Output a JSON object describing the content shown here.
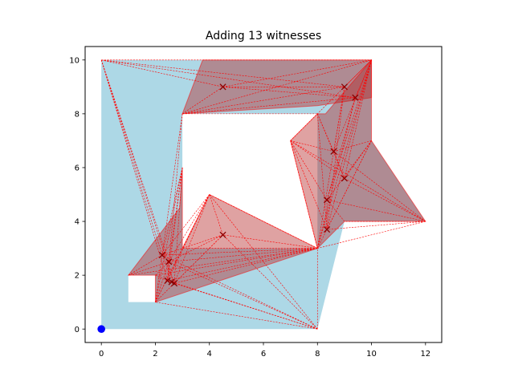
{
  "chart_data": {
    "type": "scatter",
    "title": "Adding 13 witnesses",
    "xlabel": "",
    "ylabel": "",
    "xlim": [
      -0.6,
      12.6
    ],
    "ylim": [
      -0.5,
      10.5
    ],
    "xticks": [
      0,
      2,
      4,
      6,
      8,
      10,
      12
    ],
    "yticks": [
      0,
      2,
      4,
      6,
      8,
      10
    ],
    "grid": false,
    "colors": {
      "region": "#add8e6",
      "visibility_fill": "#b22222",
      "visibility_edge": "#ff0000",
      "witness_marker": "#8b0000",
      "guard": "#0000ff"
    },
    "region_outer": [
      [
        0,
        0
      ],
      [
        8,
        0
      ],
      [
        9,
        4
      ],
      [
        12,
        4
      ],
      [
        10,
        7
      ],
      [
        10,
        10
      ],
      [
        0,
        10
      ]
    ],
    "holes": [
      [
        [
          3,
          3
        ],
        [
          3,
          8
        ],
        [
          8,
          8
        ],
        [
          8,
          3
        ]
      ],
      [
        [
          1,
          1
        ],
        [
          2,
          1
        ],
        [
          2,
          2
        ],
        [
          1,
          2
        ]
      ]
    ],
    "guard": [
      0,
      0
    ],
    "witnesses": [
      {
        "x": 4.5,
        "y": 9.0
      },
      {
        "x": 9.0,
        "y": 9.0
      },
      {
        "x": 9.4,
        "y": 8.6
      },
      {
        "x": 8.6,
        "y": 6.6
      },
      {
        "x": 9.0,
        "y": 5.6
      },
      {
        "x": 8.35,
        "y": 4.8
      },
      {
        "x": 8.35,
        "y": 3.7
      },
      {
        "x": 4.5,
        "y": 3.5
      },
      {
        "x": 2.25,
        "y": 2.75
      },
      {
        "x": 2.5,
        "y": 2.5
      },
      {
        "x": 2.45,
        "y": 1.8
      },
      {
        "x": 2.7,
        "y": 1.7
      },
      {
        "x": 2.6,
        "y": 1.75
      }
    ],
    "visibility_polygons": [
      [
        [
          3,
          8
        ],
        [
          3.75,
          10
        ],
        [
          10,
          10
        ],
        [
          10,
          8.6
        ],
        [
          8,
          8.3
        ]
      ],
      [
        [
          7,
          7
        ],
        [
          8,
          8
        ],
        [
          8.3,
          8
        ],
        [
          10,
          10
        ],
        [
          10,
          7
        ],
        [
          12,
          4
        ],
        [
          9,
          4
        ],
        [
          8.3,
          3.3
        ],
        [
          8,
          3
        ]
      ],
      [
        [
          1,
          2
        ],
        [
          2,
          2
        ],
        [
          2,
          1
        ],
        [
          8,
          3
        ],
        [
          7,
          3.5
        ],
        [
          4,
          5
        ],
        [
          3,
          3
        ],
        [
          3,
          6
        ],
        [
          2.9,
          4.5
        ]
      ]
    ],
    "sight_lines": [
      [
        [
          0,
          10
        ],
        [
          2.25,
          2.75
        ]
      ],
      [
        [
          0,
          10
        ],
        [
          2.5,
          2.5
        ]
      ],
      [
        [
          0,
          10
        ],
        [
          2.45,
          1.8
        ]
      ],
      [
        [
          0,
          10
        ],
        [
          2.7,
          1.7
        ]
      ],
      [
        [
          0,
          10
        ],
        [
          4.5,
          9
        ]
      ],
      [
        [
          0,
          10
        ],
        [
          9,
          9
        ]
      ],
      [
        [
          0,
          10
        ],
        [
          9.4,
          8.6
        ]
      ],
      [
        [
          0,
          10
        ],
        [
          10,
          10
        ]
      ],
      [
        [
          3,
          8
        ],
        [
          9,
          9
        ]
      ],
      [
        [
          3,
          8
        ],
        [
          9.4,
          8.6
        ]
      ],
      [
        [
          3,
          8
        ],
        [
          10,
          10
        ]
      ],
      [
        [
          3,
          8
        ],
        [
          4.5,
          9
        ]
      ],
      [
        [
          3,
          8
        ],
        [
          8,
          8
        ]
      ],
      [
        [
          4.5,
          9
        ],
        [
          10,
          10
        ]
      ],
      [
        [
          4.5,
          9
        ],
        [
          9.4,
          8.6
        ]
      ],
      [
        [
          4.5,
          9
        ],
        [
          9,
          9
        ]
      ],
      [
        [
          9,
          9
        ],
        [
          10,
          10
        ]
      ],
      [
        [
          9.4,
          8.6
        ],
        [
          10,
          10
        ]
      ],
      [
        [
          10,
          10
        ],
        [
          8.6,
          6.6
        ]
      ],
      [
        [
          10,
          10
        ],
        [
          9,
          5.6
        ]
      ],
      [
        [
          10,
          10
        ],
        [
          8.35,
          4.8
        ]
      ],
      [
        [
          10,
          10
        ],
        [
          8.35,
          3.7
        ]
      ],
      [
        [
          10,
          10
        ],
        [
          8,
          3
        ]
      ],
      [
        [
          10,
          10
        ],
        [
          7,
          7
        ]
      ],
      [
        [
          9,
          9
        ],
        [
          8.35,
          3.7
        ]
      ],
      [
        [
          9,
          9
        ],
        [
          8,
          3
        ]
      ],
      [
        [
          9.4,
          8.6
        ],
        [
          8.35,
          4.8
        ]
      ],
      [
        [
          9.4,
          8.6
        ],
        [
          8,
          3
        ]
      ],
      [
        [
          9,
          9
        ],
        [
          8.6,
          6.6
        ]
      ],
      [
        [
          8,
          8
        ],
        [
          8.35,
          3.7
        ]
      ],
      [
        [
          8,
          8
        ],
        [
          9,
          5.6
        ]
      ],
      [
        [
          8,
          8
        ],
        [
          8.6,
          6.6
        ]
      ],
      [
        [
          7,
          7
        ],
        [
          12,
          4
        ]
      ],
      [
        [
          7,
          7
        ],
        [
          8.6,
          6.6
        ]
      ],
      [
        [
          7,
          7
        ],
        [
          9,
          5.6
        ]
      ],
      [
        [
          7,
          7
        ],
        [
          8.35,
          4.8
        ]
      ],
      [
        [
          7,
          7
        ],
        [
          8.35,
          3.7
        ]
      ],
      [
        [
          7,
          7
        ],
        [
          8,
          3
        ]
      ],
      [
        [
          10,
          7
        ],
        [
          8.35,
          3.7
        ]
      ],
      [
        [
          10,
          7
        ],
        [
          8.6,
          6.6
        ]
      ],
      [
        [
          10,
          7
        ],
        [
          9,
          5.6
        ]
      ],
      [
        [
          10,
          7
        ],
        [
          8.35,
          4.8
        ]
      ],
      [
        [
          10,
          7
        ],
        [
          8,
          3
        ]
      ],
      [
        [
          12,
          4
        ],
        [
          8.6,
          6.6
        ]
      ],
      [
        [
          12,
          4
        ],
        [
          9,
          5.6
        ]
      ],
      [
        [
          12,
          4
        ],
        [
          8.35,
          4.8
        ]
      ],
      [
        [
          12,
          4
        ],
        [
          8.35,
          3.7
        ]
      ],
      [
        [
          12,
          4
        ],
        [
          8,
          3
        ]
      ],
      [
        [
          12,
          4
        ],
        [
          9,
          4
        ]
      ],
      [
        [
          9,
          4
        ],
        [
          8.35,
          4.8
        ]
      ],
      [
        [
          8.6,
          6.6
        ],
        [
          9,
          5.6
        ]
      ],
      [
        [
          8.35,
          4.8
        ],
        [
          8.35,
          3.7
        ]
      ],
      [
        [
          8,
          3
        ],
        [
          2.25,
          2.75
        ]
      ],
      [
        [
          8,
          3
        ],
        [
          2.5,
          2.5
        ]
      ],
      [
        [
          8,
          3
        ],
        [
          2.45,
          1.8
        ]
      ],
      [
        [
          8,
          3
        ],
        [
          2.7,
          1.7
        ]
      ],
      [
        [
          8,
          3
        ],
        [
          4.5,
          3.5
        ]
      ],
      [
        [
          8,
          3
        ],
        [
          4,
          5
        ]
      ],
      [
        [
          8,
          3
        ],
        [
          1,
          2
        ]
      ],
      [
        [
          8,
          3
        ],
        [
          3,
          3
        ]
      ],
      [
        [
          8,
          3
        ],
        [
          2,
          2
        ]
      ],
      [
        [
          8,
          0
        ],
        [
          2.25,
          2.75
        ]
      ],
      [
        [
          8,
          0
        ],
        [
          2.5,
          2.5
        ]
      ],
      [
        [
          8,
          0
        ],
        [
          2.45,
          1.8
        ]
      ],
      [
        [
          8,
          0
        ],
        [
          2.7,
          1.7
        ]
      ],
      [
        [
          8,
          0
        ],
        [
          4.5,
          3.5
        ]
      ],
      [
        [
          8,
          0
        ],
        [
          4,
          5
        ]
      ],
      [
        [
          8,
          0
        ],
        [
          2,
          1
        ]
      ],
      [
        [
          8,
          0
        ],
        [
          8,
          3
        ]
      ],
      [
        [
          4,
          5
        ],
        [
          2.25,
          2.75
        ]
      ],
      [
        [
          4,
          5
        ],
        [
          2.5,
          2.5
        ]
      ],
      [
        [
          4,
          5
        ],
        [
          2.45,
          1.8
        ]
      ],
      [
        [
          4,
          5
        ],
        [
          2.7,
          1.7
        ]
      ],
      [
        [
          4,
          5
        ],
        [
          4.5,
          3.5
        ]
      ],
      [
        [
          4,
          5
        ],
        [
          2,
          1
        ]
      ],
      [
        [
          4.5,
          3.5
        ],
        [
          2.25,
          2.75
        ]
      ],
      [
        [
          4.5,
          3.5
        ],
        [
          2.5,
          2.5
        ]
      ],
      [
        [
          4.5,
          3.5
        ],
        [
          2.7,
          1.7
        ]
      ],
      [
        [
          4.5,
          3.5
        ],
        [
          2,
          1
        ]
      ],
      [
        [
          2,
          1
        ],
        [
          2.25,
          2.75
        ]
      ],
      [
        [
          2,
          1
        ],
        [
          2.5,
          2.5
        ]
      ],
      [
        [
          2,
          1
        ],
        [
          3,
          3
        ]
      ],
      [
        [
          2,
          1
        ],
        [
          3,
          6
        ]
      ],
      [
        [
          1,
          2
        ],
        [
          2.25,
          2.75
        ]
      ],
      [
        [
          1,
          2
        ],
        [
          2.5,
          2.5
        ]
      ],
      [
        [
          3,
          6
        ],
        [
          2.25,
          2.75
        ]
      ],
      [
        [
          3,
          6
        ],
        [
          2.5,
          2.5
        ]
      ],
      [
        [
          3,
          6
        ],
        [
          2.45,
          1.8
        ]
      ],
      [
        [
          3,
          6
        ],
        [
          2.7,
          1.7
        ]
      ],
      [
        [
          3,
          8
        ],
        [
          2.25,
          2.75
        ]
      ],
      [
        [
          3,
          8
        ],
        [
          2.5,
          2.5
        ]
      ],
      [
        [
          2.25,
          2.75
        ],
        [
          2.7,
          1.7
        ]
      ],
      [
        [
          2.5,
          2.5
        ],
        [
          2.45,
          1.8
        ]
      ],
      [
        [
          2,
          2
        ],
        [
          2.7,
          1.7
        ]
      ],
      [
        [
          2,
          2
        ],
        [
          2.5,
          2.5
        ]
      ]
    ]
  }
}
